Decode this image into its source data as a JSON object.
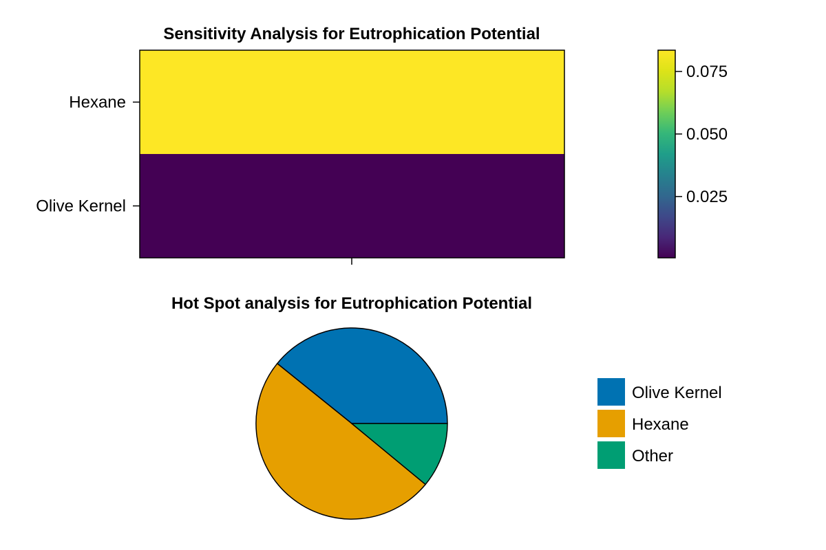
{
  "chart_data": [
    {
      "type": "heatmap",
      "title": "Sensitivity Analysis for Eutrophication Potential",
      "rows": [
        "Hexane",
        "Olive Kernel"
      ],
      "values": [
        0.0835,
        0.0005
      ],
      "colorbar": {
        "colormap": "viridis",
        "range": [
          0.0005,
          0.0835
        ],
        "ticks": [
          0.025,
          0.05,
          0.075
        ],
        "tick_labels": [
          "0.025",
          "0.050",
          "0.075"
        ]
      }
    },
    {
      "type": "pie",
      "title": "Hot Spot analysis for Eutrophication Potential",
      "labels": [
        "Olive Kernel",
        "Hexane",
        "Other"
      ],
      "values": [
        0.392,
        0.498,
        0.11
      ],
      "colors": [
        "#0072b2",
        "#e69f00",
        "#009e73"
      ],
      "legend_position": "right"
    }
  ]
}
